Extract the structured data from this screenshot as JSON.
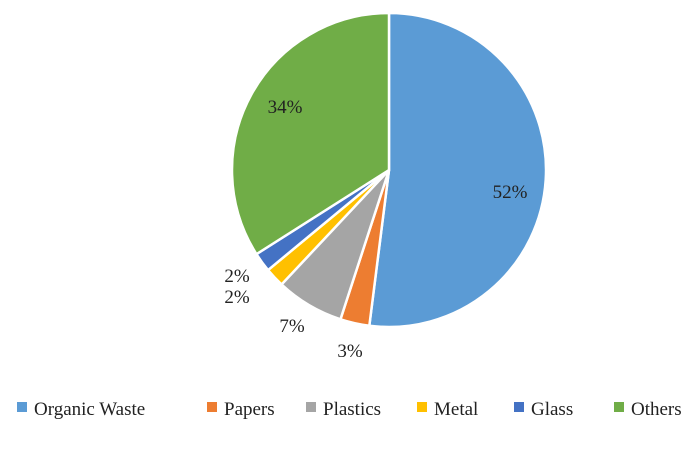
{
  "chart_data": {
    "type": "pie",
    "title": "",
    "categories": [
      "Organic Waste",
      "Papers",
      "Plastics",
      "Metal",
      "Glass",
      "Others"
    ],
    "values": [
      52,
      3,
      7,
      2,
      2,
      34
    ],
    "labels": [
      "52%",
      "3%",
      "7%",
      "2%",
      "2%",
      "34%"
    ],
    "colors": [
      "#5B9BD5",
      "#ED7D31",
      "#A5A5A5",
      "#FFC000",
      "#4472C4",
      "#70AD47"
    ],
    "start_angle_deg": 0,
    "direction": "clockwise",
    "legend_position": "bottom"
  }
}
